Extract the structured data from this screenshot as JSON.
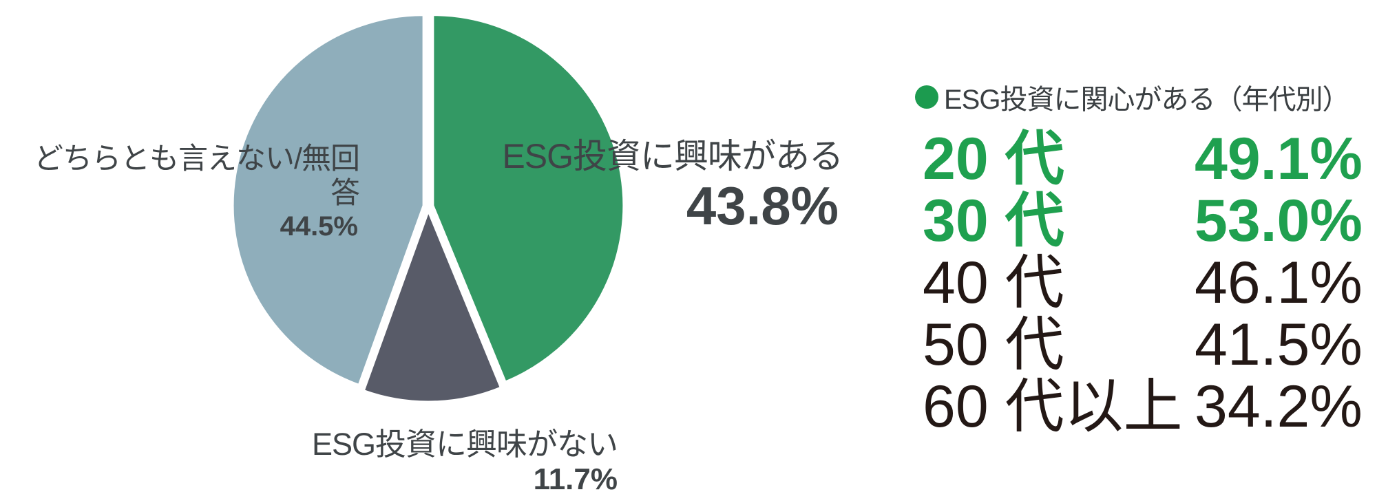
{
  "chart_data": [
    {
      "type": "pie",
      "title": "",
      "start_angle": "top",
      "direction": "clockwise",
      "separator_color": "#FFFFFF",
      "label_color": "#3F4447",
      "slices": [
        {
          "label": "ESG投資に興味がある",
          "value": 43.8,
          "value_text": "43.8%",
          "color": "#339964"
        },
        {
          "label": "ESG投資に興味がない",
          "value": 11.7,
          "value_text": "11.7%",
          "color": "#585B68"
        },
        {
          "label": "どちらとも言えない/無回答",
          "value": 44.5,
          "value_text": "44.5%",
          "color": "#8FAEBB"
        }
      ]
    },
    {
      "type": "table",
      "title": "ESG投資に関心がある（年代別）",
      "title_color": "#3A3F42",
      "bullet_color": "#1C9B4F",
      "highlight_color": "#1FA04F",
      "text_color": "#231815",
      "rows": [
        {
          "age_num": "20",
          "age_suffix": "代",
          "value": "49.1%",
          "highlight": true
        },
        {
          "age_num": "30",
          "age_suffix": "代",
          "value": "53.0%",
          "highlight": true
        },
        {
          "age_num": "40",
          "age_suffix": "代",
          "value": "46.1%",
          "highlight": false
        },
        {
          "age_num": "50",
          "age_suffix": "代",
          "value": "41.5%",
          "highlight": false
        },
        {
          "age_num": "60",
          "age_suffix": "代以上",
          "value": "34.2%",
          "highlight": false
        }
      ]
    }
  ]
}
